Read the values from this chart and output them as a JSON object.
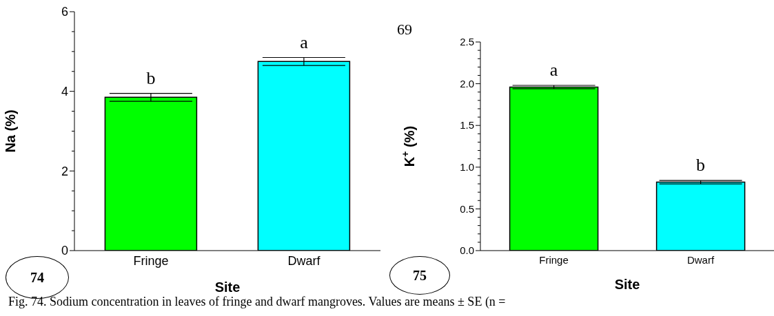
{
  "chart_data": [
    {
      "type": "bar",
      "xlabel": "Site",
      "ylabel": "Na (%)",
      "categories": [
        "Fringe",
        "Dwarf"
      ],
      "values": [
        3.85,
        4.75
      ],
      "errors": [
        0.1,
        0.1
      ],
      "colors": [
        "#00ff00",
        "#00ffff"
      ],
      "ylim": [
        0,
        6
      ],
      "yticks": [
        0,
        {
          "value": 0.5,
          "label": null
        },
        {
          "value": 1,
          "label": null
        },
        {
          "value": 1.5,
          "label": null
        },
        2,
        {
          "value": 2.5,
          "label": null
        },
        {
          "value": 3,
          "label": null
        },
        {
          "value": 3.5,
          "label": null
        },
        4,
        {
          "value": 4.5,
          "label": null
        },
        {
          "value": 5,
          "label": null
        },
        {
          "value": 5.5,
          "label": null
        },
        6
      ],
      "annotations": [
        "74",
        "Fig. 74. Sodium concentration in leaves of fringe and dwarf mangroves. Values are means ± SE (n =",
        "b",
        "a"
      ]
    },
    {
      "type": "bar",
      "xlabel": "Site",
      "ylabel": "K$^{+}$ (%)",
      "categories": [
        "Fringe",
        "Dwarf"
      ],
      "values": [
        1.96,
        0.82
      ],
      "errors": [
        0.02,
        0.02
      ],
      "colors": [
        "#00ff00",
        "#00ffff"
      ],
      "ylim": [
        0,
        2.5
      ],
      "yticks": [
        {
          "value": 0,
          "label": "0.0"
        },
        {
          "value": 0.1,
          "label": null
        },
        {
          "value": 0.2,
          "label": null
        },
        {
          "value": 0.3,
          "label": null
        },
        {
          "value": 0.4,
          "label": null
        },
        0.5,
        {
          "value": 0.6,
          "label": null
        },
        {
          "value": 0.7,
          "label": null
        },
        {
          "value": 0.8,
          "label": null
        },
        {
          "value": 0.9,
          "label": null
        },
        {
          "value": 1,
          "label": "1.0"
        },
        {
          "value": 1.1,
          "label": null
        },
        {
          "value": 1.2,
          "label": null
        },
        {
          "value": 1.3,
          "label": null
        },
        {
          "value": 1.4,
          "label": null
        },
        1.5,
        {
          "value": 1.6,
          "label": null
        },
        {
          "value": 1.7,
          "label": null
        },
        {
          "value": 1.8,
          "label": null
        },
        {
          "value": 1.9,
          "label": null
        },
        {
          "value": 2,
          "label": "2.0"
        },
        {
          "value": 2.1,
          "label": null
        },
        {
          "value": 2.2,
          "label": null
        },
        {
          "value": 2.3,
          "label": null
        },
        {
          "value": 2.4,
          "label": null
        },
        2.5
      ],
      "annotations": [
        "75",
        "69",
        "a",
        "b"
      ]
    }
  ]
}
